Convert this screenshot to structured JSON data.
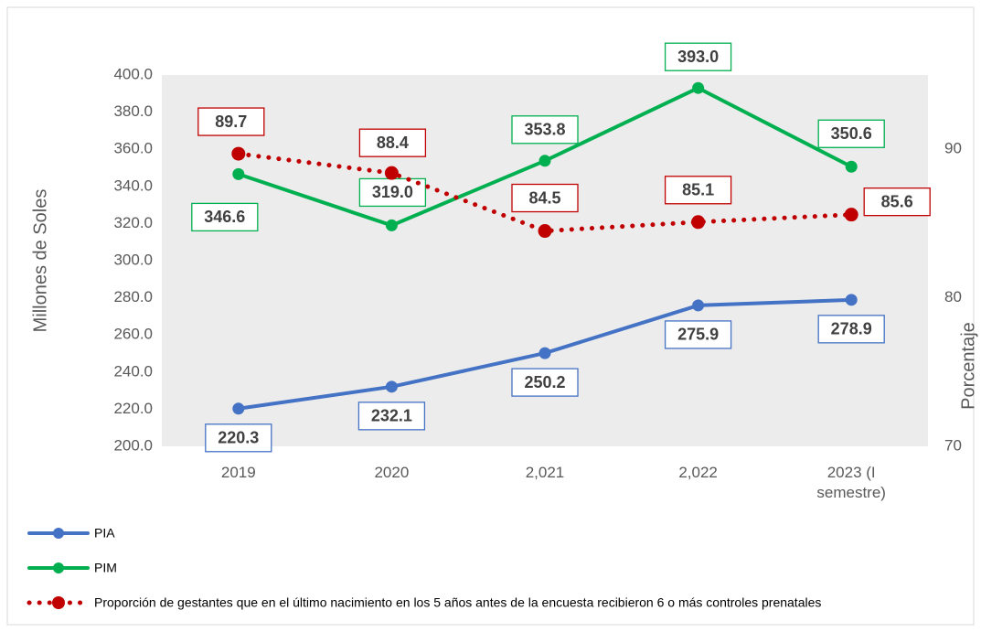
{
  "chart_data": {
    "type": "line",
    "categories": [
      "2019",
      "2020",
      "2,021",
      "2,022",
      "2023 (I semestre)"
    ],
    "series": [
      {
        "name": "PIA",
        "color": "#4472c4",
        "values": [
          220.3,
          232.1,
          250.2,
          275.9,
          278.9
        ],
        "value_labels": [
          "220.3",
          "232.1",
          "250.2",
          "275.9",
          "278.9"
        ]
      },
      {
        "name": "PIM",
        "color": "#00b050",
        "values": [
          346.6,
          319.0,
          353.8,
          393.0,
          350.6
        ],
        "value_labels": [
          "346.6",
          "319.0",
          "353.8",
          "393.0",
          "350.6"
        ]
      },
      {
        "name": "Proporción de gestantes que en el último nacimiento en los 5 años antes de la encuesta recibieron 6 o más controles prenatales",
        "color": "#c00000",
        "axis": "y2",
        "dashed": true,
        "values": [
          89.7,
          88.4,
          84.5,
          85.1,
          85.6
        ],
        "value_labels": [
          "89.7",
          "88.4",
          "84.5",
          "85.1",
          "85.6"
        ]
      }
    ],
    "ylabel": "Millones de Soles",
    "y2label": "Porcentaje",
    "ylim": [
      200,
      400
    ],
    "yticks": [
      {
        "value": 200,
        "label": "200.0"
      },
      {
        "value": 220,
        "label": "220.0"
      },
      {
        "value": 240,
        "label": "240.0"
      },
      {
        "value": 260,
        "label": "260.0"
      },
      {
        "value": 280,
        "label": "280.0"
      },
      {
        "value": 300,
        "label": "300.0"
      },
      {
        "value": 320,
        "label": "320.0"
      },
      {
        "value": 340,
        "label": "340.0"
      },
      {
        "value": 360,
        "label": "360.0"
      },
      {
        "value": 380,
        "label": "380.0"
      },
      {
        "value": 400,
        "label": "400.0"
      }
    ],
    "y2lim": [
      70,
      95
    ],
    "y2ticks": [
      70,
      80,
      90
    ],
    "grid": false,
    "legend": "bottom"
  }
}
